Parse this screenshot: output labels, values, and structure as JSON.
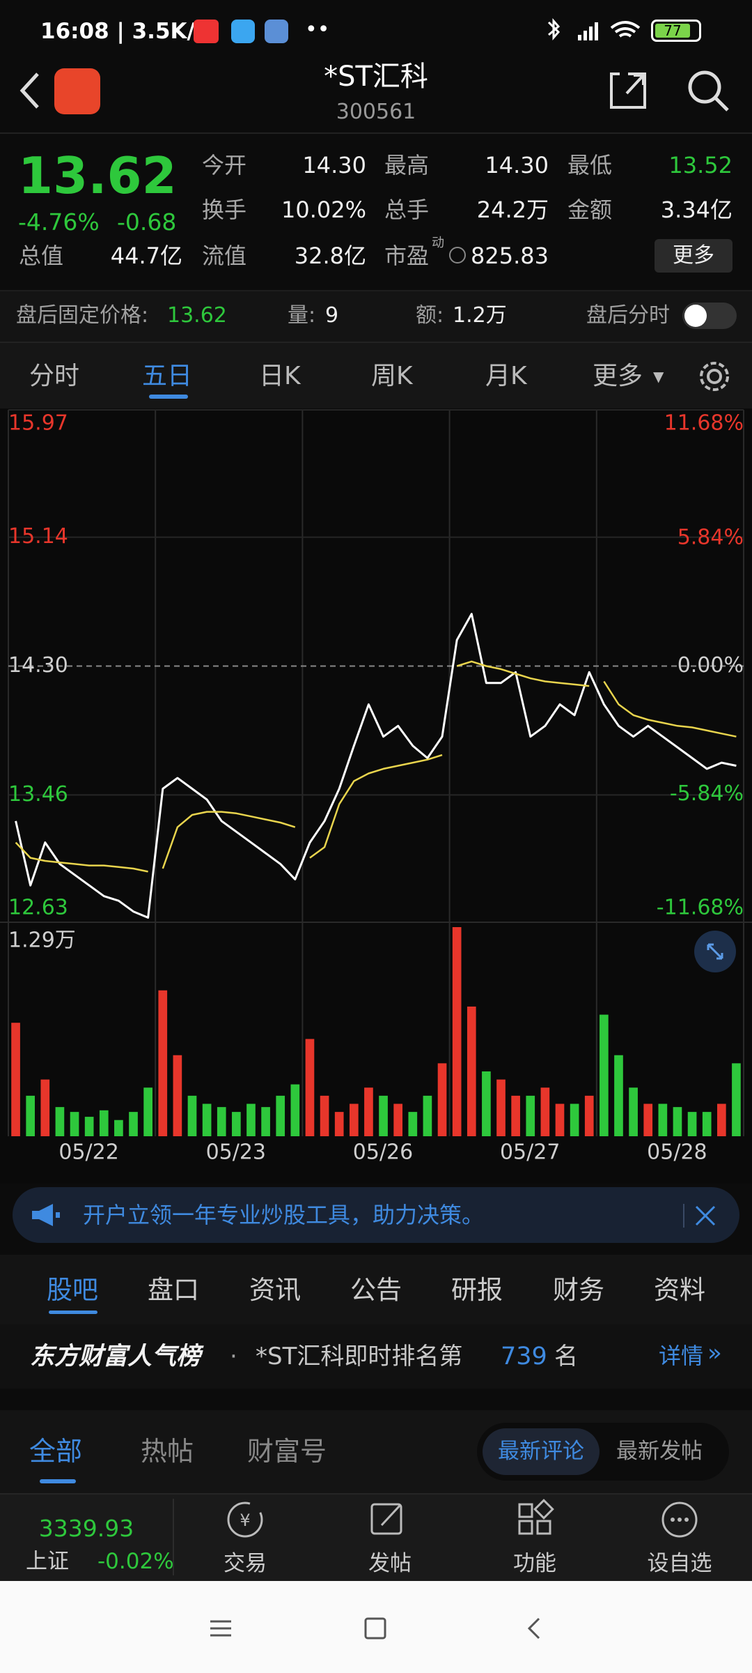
{
  "status": {
    "time": "16:08",
    "speed": "3.5K/s",
    "battery": "77"
  },
  "header": {
    "title": "*ST汇科",
    "code": "300561"
  },
  "quote": {
    "price": "13.62",
    "change_pct": "-4.76%",
    "change": "-0.68",
    "stats": [
      {
        "label": "今开",
        "value": "14.30"
      },
      {
        "label": "最高",
        "value": "14.30"
      },
      {
        "label": "最低",
        "value": "13.52"
      },
      {
        "label": "换手",
        "value": "10.02%"
      },
      {
        "label": "总手",
        "value": "24.2万"
      },
      {
        "label": "金额",
        "value": "3.34亿"
      },
      {
        "label": "总值",
        "value": "44.7亿"
      },
      {
        "label": "流值",
        "value": "32.8亿"
      },
      {
        "label": "市盈",
        "sup": "动",
        "value": "825.83"
      }
    ],
    "more": "更多"
  },
  "after_hours": {
    "price_label": "盘后固定价格:",
    "price": "13.62",
    "volume_label": "量:",
    "volume": "9",
    "amount_label": "额:",
    "amount": "1.2万",
    "switch": "盘后分时"
  },
  "chart_tabs": [
    "分时",
    "五日",
    "日K",
    "周K",
    "月K",
    "更多"
  ],
  "chart_data": {
    "type": "line",
    "days": [
      "05/22",
      "05/23",
      "05/26",
      "05/27",
      "05/28"
    ],
    "ylim": [
      12.63,
      15.97
    ],
    "yticks": [
      15.97,
      15.14,
      {
        "value": 14.3,
        "label": "14.30"
      },
      13.46,
      12.63
    ],
    "y2lim": [
      -11.68,
      11.68
    ],
    "y2ticks": [
      {
        "value": 11.68,
        "label": "11.68%"
      },
      {
        "value": 5.84,
        "label": "5.84%"
      },
      {
        "value": 0,
        "label": "0.00%"
      },
      {
        "value": -5.84,
        "label": "-5.84%"
      },
      {
        "value": -11.68,
        "label": "-11.68%"
      }
    ],
    "series": [
      {
        "name": "price",
        "color": "#ffffff",
        "values": [
          13.29,
          12.87,
          13.15,
          13.01,
          12.94,
          12.87,
          12.8,
          12.77,
          12.7,
          12.66,
          13.5,
          13.57,
          13.5,
          13.43,
          13.29,
          13.22,
          13.15,
          13.08,
          13.01,
          12.91,
          13.15,
          13.29,
          13.5,
          13.78,
          14.05,
          13.84,
          13.91,
          13.78,
          13.7,
          13.84,
          14.47,
          14.64,
          14.19,
          14.19,
          14.26,
          13.84,
          13.91,
          14.05,
          13.98,
          14.26,
          14.05,
          13.91,
          13.84,
          13.91,
          13.84,
          13.77,
          13.7,
          13.63,
          13.67,
          13.65
        ]
      },
      {
        "name": "average",
        "color": "#e8d44d",
        "values": [
          13.15,
          13.05,
          13.03,
          13.02,
          13.01,
          13,
          13,
          12.99,
          12.98,
          12.96,
          12.98,
          13.25,
          13.33,
          13.35,
          13.35,
          13.34,
          13.32,
          13.3,
          13.28,
          13.25,
          13.05,
          13.12,
          13.4,
          13.55,
          13.6,
          13.63,
          13.65,
          13.67,
          13.69,
          13.72,
          14.3,
          14.33,
          14.3,
          14.28,
          14.25,
          14.22,
          14.2,
          14.19,
          14.18,
          14.17,
          14.2,
          14.05,
          13.98,
          13.95,
          13.93,
          13.91,
          13.9,
          13.88,
          13.86,
          13.84
        ]
      }
    ],
    "volume": {
      "ylim": [
        0,
        12900
      ],
      "yticks": [
        {
          "value": 12900,
          "label": "1.29万"
        }
      ],
      "up_color": "#e8362b",
      "down_color": "#2ec83c",
      "values": [
        7000,
        2500,
        3500,
        1800,
        1500,
        1200,
        1600,
        1000,
        1500,
        3000,
        9000,
        5000,
        2500,
        2000,
        1800,
        1500,
        2000,
        1800,
        2500,
        3200,
        6000,
        2500,
        1500,
        2000,
        3000,
        2500,
        2000,
        1500,
        2500,
        4500,
        12900,
        8000,
        4000,
        3500,
        2500,
        2500,
        3000,
        2000,
        2000,
        2500,
        7500,
        5000,
        3000,
        2000,
        2000,
        1800,
        1500,
        1500,
        2000,
        4500
      ]
    }
  },
  "banner": "开户立领一年专业炒股工具，助力决策。",
  "section_tabs": [
    "股吧",
    "盘口",
    "资讯",
    "公告",
    "研报",
    "财务",
    "资料"
  ],
  "popularity": {
    "title": "东方财富人气榜",
    "text": "*ST汇科即时排名第",
    "rank": "739",
    "unit": "名",
    "detail": "详情"
  },
  "sub_tabs": [
    "全部",
    "热帖",
    "财富号"
  ],
  "sort_toggle": [
    "最新评论",
    "最新发帖"
  ],
  "bottom_nav": {
    "index_value": "3339.93",
    "index_name": "上证",
    "index_change": "-0.02%",
    "items": [
      "交易",
      "发帖",
      "功能",
      "设自选"
    ]
  }
}
